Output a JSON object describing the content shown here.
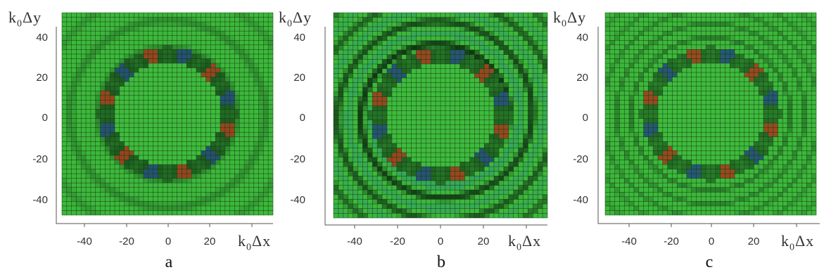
{
  "axis_labels": {
    "y_main": "k",
    "y_sub": "0",
    "y_tail": "Δy",
    "x_main": "k",
    "x_sub": "0",
    "x_tail": "Δx"
  },
  "y_ticks": [
    "40",
    "20",
    "0",
    "-20",
    "-40"
  ],
  "x_ticks": [
    "-40",
    "-20",
    "0",
    "20",
    "40"
  ],
  "panels": [
    {
      "id": "a",
      "letter": "a",
      "ring_strength": 0.35,
      "inner_dark": 0.9,
      "wave_count": 4
    },
    {
      "id": "b",
      "letter": "b",
      "ring_strength": 1.0,
      "inner_dark": 0.8,
      "wave_count": 5
    },
    {
      "id": "c",
      "letter": "c",
      "ring_strength": 0.45,
      "inner_dark": 0.7,
      "wave_count": 8
    }
  ],
  "colors": {
    "surface_green": "#3cb83a",
    "surface_dark": "#0b2a10",
    "surface_teal": "#2a8f8a",
    "accent_red": "#c9401d",
    "accent_blue": "#2b4fa8",
    "grid_line": "#0e2a0e",
    "axis_line": "#555555"
  }
}
